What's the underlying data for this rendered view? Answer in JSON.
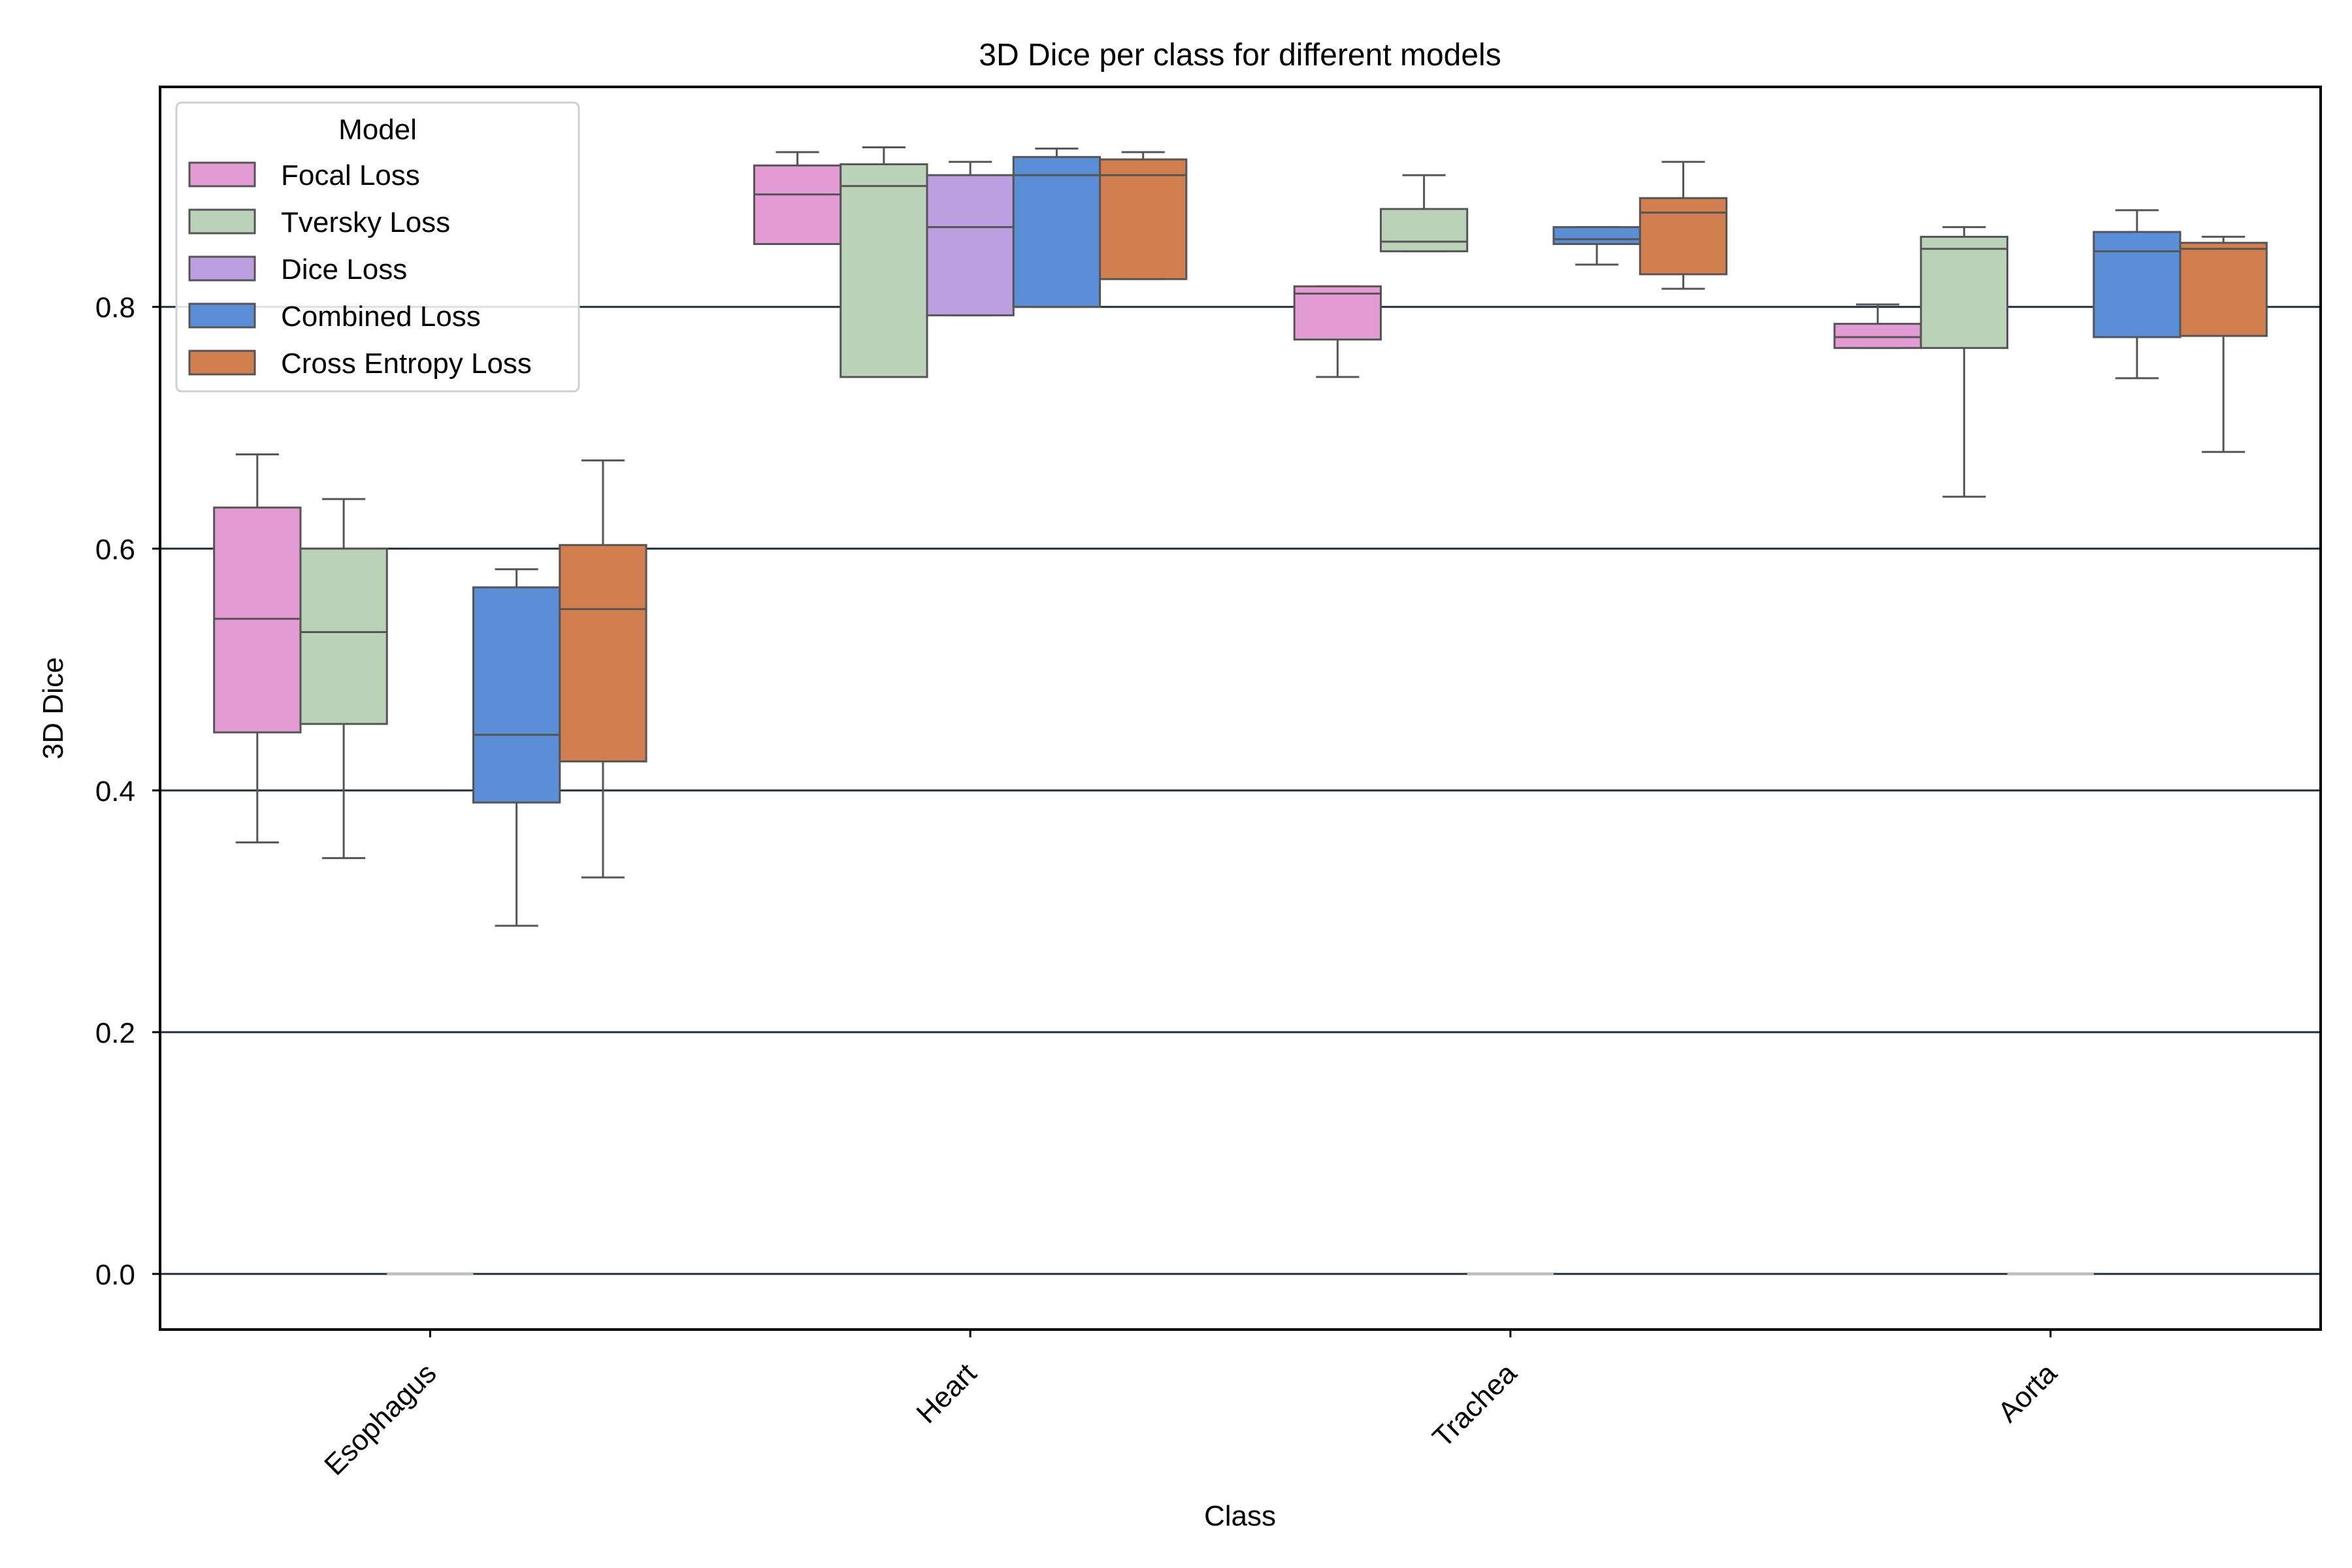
{
  "chart_data": {
    "type": "box",
    "title": "3D Dice per class for different models",
    "xlabel": "Class",
    "ylabel": "3D Dice",
    "ylim": [
      -0.046,
      0.982
    ],
    "yticks": [
      0.0,
      0.2,
      0.4,
      0.6,
      0.8
    ],
    "ytick_labels": [
      "0.0",
      "0.2",
      "0.4",
      "0.6",
      "0.8"
    ],
    "grid": "horizontal",
    "categories": [
      "Esophagus",
      "Heart",
      "Trachea",
      "Aorta"
    ],
    "legend": {
      "title": "Model",
      "placement": "top-left"
    },
    "series": [
      {
        "name": "Focal Loss",
        "color": "#e29bd3",
        "boxes": [
          {
            "whislo": 0.357,
            "q1": 0.448,
            "med": 0.542,
            "q3": 0.634,
            "whishi": 0.678
          },
          {
            "whislo": 0.852,
            "q1": 0.852,
            "med": 0.893,
            "q3": 0.917,
            "whishi": 0.928
          },
          {
            "whislo": 0.742,
            "q1": 0.773,
            "med": 0.811,
            "q3": 0.817,
            "whishi": 0.817
          },
          {
            "whislo": 0.766,
            "q1": 0.766,
            "med": 0.775,
            "q3": 0.786,
            "whishi": 0.802
          }
        ]
      },
      {
        "name": "Tversky Loss",
        "color": "#bad2b7",
        "boxes": [
          {
            "whislo": 0.344,
            "q1": 0.455,
            "med": 0.531,
            "q3": 0.6,
            "whishi": 0.641
          },
          {
            "whislo": 0.742,
            "q1": 0.742,
            "med": 0.9,
            "q3": 0.918,
            "whishi": 0.932
          },
          {
            "whislo": 0.846,
            "q1": 0.846,
            "med": 0.854,
            "q3": 0.881,
            "whishi": 0.909
          },
          {
            "whislo": 0.643,
            "q1": 0.766,
            "med": 0.848,
            "q3": 0.858,
            "whishi": 0.866
          }
        ]
      },
      {
        "name": "Dice Loss",
        "color": "#bb9fe0",
        "boxes": [
          {
            "whislo": 0.0,
            "q1": 0.0,
            "med": 0.0,
            "q3": 0.0,
            "whishi": 0.0
          },
          {
            "whislo": 0.793,
            "q1": 0.793,
            "med": 0.866,
            "q3": 0.909,
            "whishi": 0.92
          },
          {
            "whislo": 0.0,
            "q1": 0.0,
            "med": 0.0,
            "q3": 0.0,
            "whishi": 0.0
          },
          {
            "whislo": 0.0,
            "q1": 0.0,
            "med": 0.0,
            "q3": 0.0,
            "whishi": 0.0
          }
        ]
      },
      {
        "name": "Combined Loss",
        "color": "#5a8ed6",
        "boxes": [
          {
            "whislo": 0.288,
            "q1": 0.39,
            "med": 0.446,
            "q3": 0.568,
            "whishi": 0.583
          },
          {
            "whislo": 0.8,
            "q1": 0.8,
            "med": 0.909,
            "q3": 0.924,
            "whishi": 0.931
          },
          {
            "whislo": 0.835,
            "q1": 0.852,
            "med": 0.856,
            "q3": 0.866,
            "whishi": 0.866
          },
          {
            "whislo": 0.741,
            "q1": 0.775,
            "med": 0.846,
            "q3": 0.862,
            "whishi": 0.88
          }
        ]
      },
      {
        "name": "Cross Entropy Loss",
        "color": "#d17f4f",
        "boxes": [
          {
            "whislo": 0.328,
            "q1": 0.424,
            "med": 0.55,
            "q3": 0.603,
            "whishi": 0.673
          },
          {
            "whislo": 0.823,
            "q1": 0.823,
            "med": 0.909,
            "q3": 0.922,
            "whishi": 0.928
          },
          {
            "whislo": 0.815,
            "q1": 0.827,
            "med": 0.878,
            "q3": 0.89,
            "whishi": 0.92
          },
          {
            "whislo": 0.68,
            "q1": 0.776,
            "med": 0.848,
            "q3": 0.853,
            "whishi": 0.858
          }
        ]
      }
    ]
  }
}
